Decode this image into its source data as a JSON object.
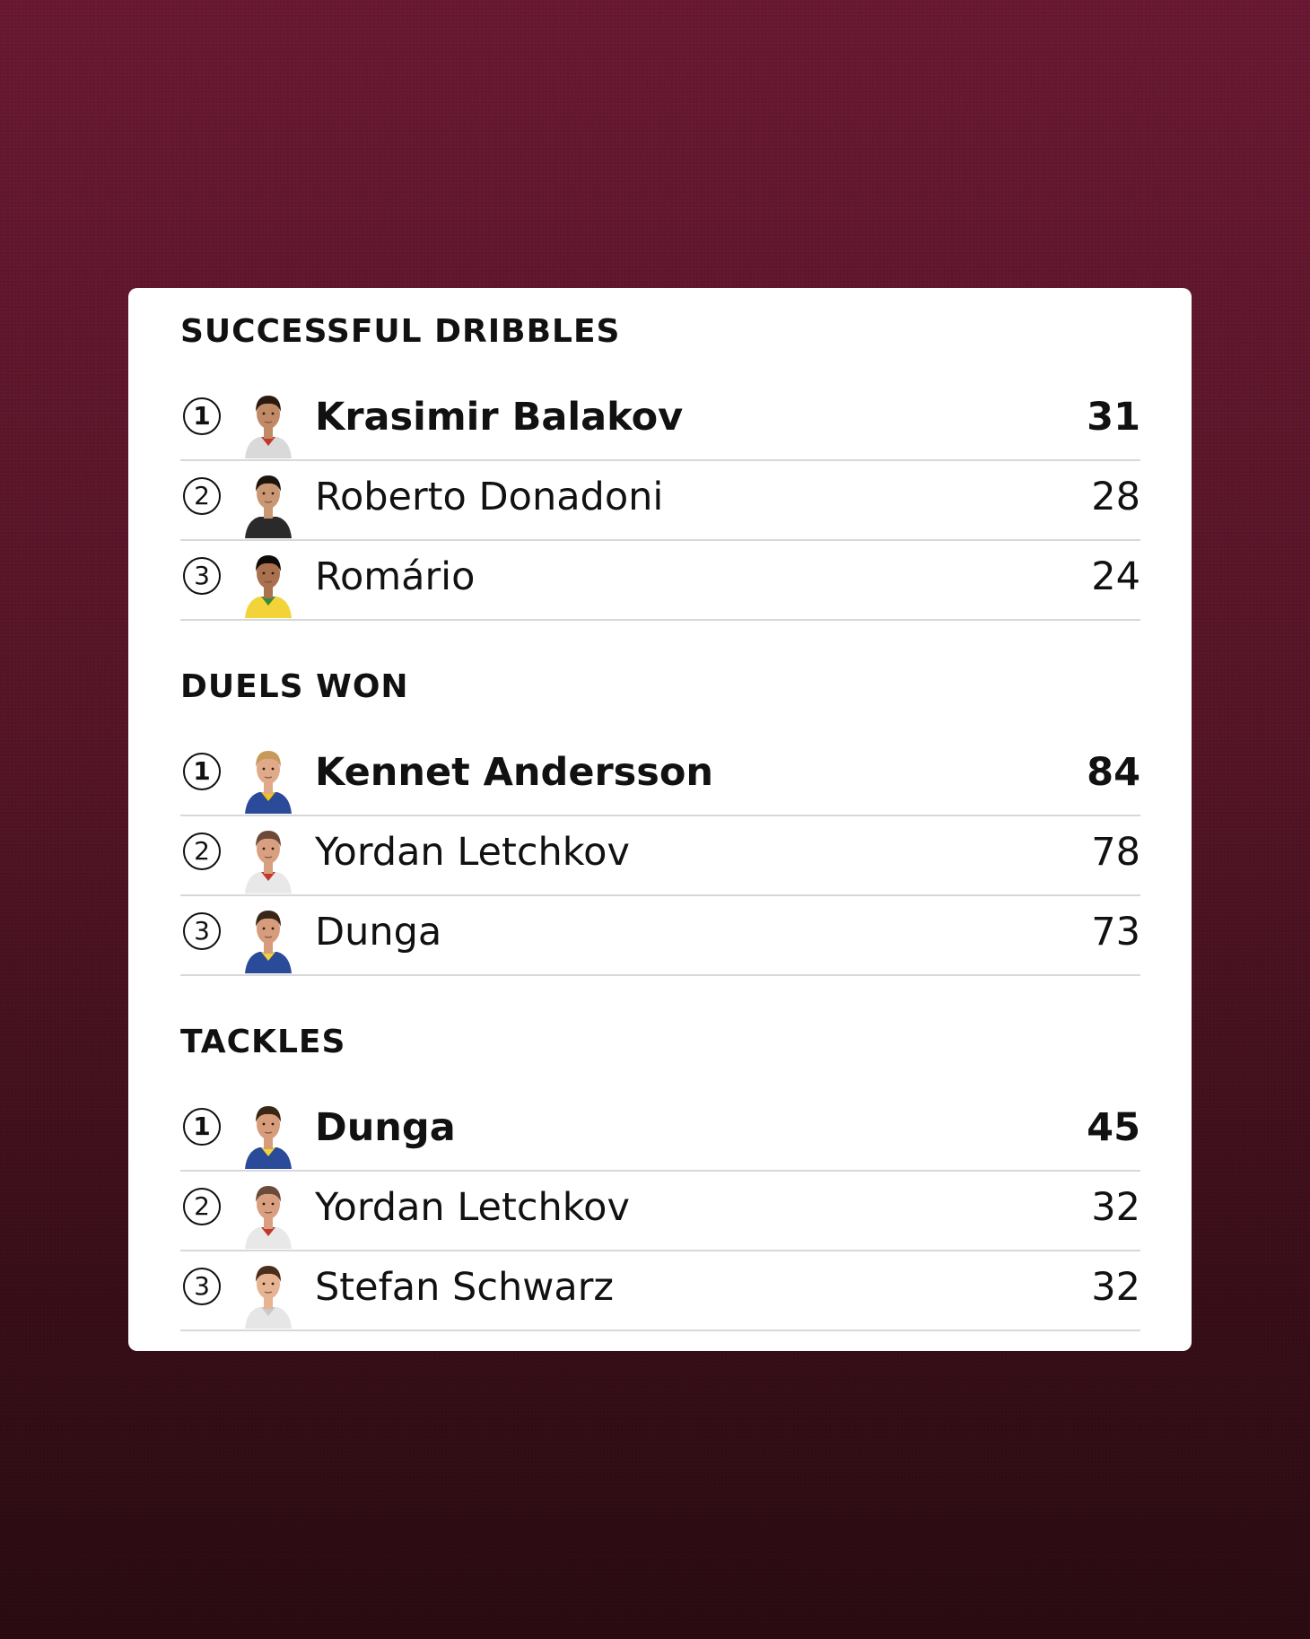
{
  "sections": [
    {
      "title": "SUCCESSFUL DRIBBLES",
      "rows": [
        {
          "rank": "1",
          "name": "Krasimir Balakov",
          "value": "31",
          "hair": "#2a1a10",
          "skin": "#c08a66",
          "shirt": "#d9d9d9",
          "accent": "#c0392b"
        },
        {
          "rank": "2",
          "name": "Roberto Donadoni",
          "value": "28",
          "hair": "#1d140e",
          "skin": "#c99774",
          "shirt": "#2a2a2a",
          "accent": "#2a2a2a"
        },
        {
          "rank": "3",
          "name": "Romário",
          "value": "24",
          "hair": "#0f0b08",
          "skin": "#a9714e",
          "shirt": "#f2d43a",
          "accent": "#3a8a3a"
        }
      ]
    },
    {
      "title": "DUELS WON",
      "rows": [
        {
          "rank": "1",
          "name": "Kennet Andersson",
          "value": "84",
          "hair": "#c79a5c",
          "skin": "#e0a98a",
          "shirt": "#2c4a9a",
          "accent": "#f0c419"
        },
        {
          "rank": "2",
          "name": "Yordan Letchkov",
          "value": "78",
          "hair": "#6b4a38",
          "skin": "#d8a080",
          "shirt": "#e8e8e8",
          "accent": "#c0392b"
        },
        {
          "rank": "3",
          "name": "Dunga",
          "value": "73",
          "hair": "#3a2616",
          "skin": "#d69c7c",
          "shirt": "#2a4a9a",
          "accent": "#f2d43a"
        }
      ]
    },
    {
      "title": "TACKLES",
      "rows": [
        {
          "rank": "1",
          "name": "Dunga",
          "value": "45",
          "hair": "#3a2616",
          "skin": "#d69c7c",
          "shirt": "#2a4a9a",
          "accent": "#f2d43a"
        },
        {
          "rank": "2",
          "name": "Yordan Letchkov",
          "value": "32",
          "hair": "#6b4a38",
          "skin": "#d8a080",
          "shirt": "#e8e8e8",
          "accent": "#c0392b"
        },
        {
          "rank": "3",
          "name": "Stefan Schwarz",
          "value": "32",
          "hair": "#4a2e1a",
          "skin": "#e6b393",
          "shirt": "#e6e6e6",
          "accent": "#c9c9c9"
        }
      ]
    }
  ]
}
